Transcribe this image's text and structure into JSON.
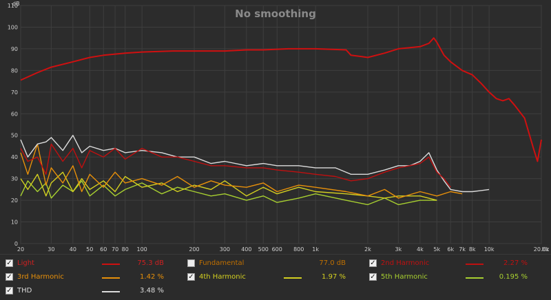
{
  "colors": {
    "background": "#2b2b2b",
    "plot_bg": "#2c2c2c",
    "grid": "#3e3e3e",
    "axis_text": "#d0d0d0",
    "title": "#8a8a8a"
  },
  "chart_data": {
    "type": "line",
    "title": "No smoothing",
    "ylabel": "dB",
    "xunit": "Hz",
    "xscale": "log",
    "xlim": [
      20,
      20000
    ],
    "ylim": [
      0,
      110
    ],
    "grid": true,
    "yticks": [
      0,
      10,
      20,
      30,
      40,
      50,
      60,
      70,
      80,
      90,
      100,
      110
    ],
    "ytick_labels": [
      "0",
      "10",
      "20",
      "30",
      "40",
      "50",
      "60",
      "70",
      "80",
      "90",
      "100",
      "110"
    ],
    "xticks": [
      20,
      30,
      40,
      50,
      60,
      70,
      80,
      100,
      200,
      300,
      400,
      500,
      600,
      800,
      1000,
      2000,
      3000,
      4000,
      5000,
      6000,
      7000,
      8000,
      10000,
      20000
    ],
    "xtick_labels": [
      "20",
      "30",
      "40",
      "50",
      "60",
      "70",
      "80",
      "100",
      "200",
      "300",
      "400",
      "500",
      "600",
      "800",
      "1k",
      "2k",
      "3k",
      "4k",
      "5k",
      "6k",
      "7k",
      "8k",
      "10k",
      "20.0k"
    ],
    "series": [
      {
        "name": "Light",
        "color": "#d01010",
        "x": [
          20,
          25,
          30,
          40,
          50,
          60,
          80,
          100,
          150,
          200,
          300,
          400,
          500,
          700,
          1000,
          1500,
          1600,
          1800,
          2000,
          2500,
          3000,
          3500,
          4000,
          4500,
          4800,
          5000,
          5500,
          6000,
          7000,
          8000,
          9000,
          10000,
          11000,
          12000,
          13000,
          14000,
          16000,
          18000,
          19000,
          20000
        ],
        "y": [
          75.5,
          79,
          81.5,
          84,
          86,
          87,
          88,
          88.5,
          89,
          89,
          89,
          89.5,
          89.5,
          90,
          90,
          89.5,
          87,
          86.5,
          86,
          88,
          90,
          90.5,
          91,
          92.5,
          95,
          93,
          87,
          84,
          80,
          78,
          74,
          70,
          67,
          66,
          67,
          64,
          58,
          44,
          38,
          48
        ]
      },
      {
        "name": "Fundamental",
        "color": "#c07000",
        "visible": false,
        "x": [],
        "y": []
      },
      {
        "name": "2nd Harmonic",
        "color": "#c01010",
        "x": [
          20,
          22,
          25,
          28,
          30,
          35,
          40,
          45,
          50,
          60,
          70,
          80,
          100,
          130,
          160,
          200,
          250,
          300,
          400,
          500,
          600,
          800,
          1000,
          1300,
          1600,
          2000,
          2500,
          3000,
          3500,
          4000,
          4500,
          5000,
          5500,
          6000
        ],
        "y": [
          44,
          38,
          40,
          32,
          46,
          38,
          44,
          35,
          43,
          40,
          44,
          39,
          44,
          40,
          40,
          38,
          36,
          36,
          35,
          35,
          34,
          33,
          32,
          31,
          29,
          30,
          33,
          35,
          36,
          37,
          40,
          33,
          30,
          26
        ]
      },
      {
        "name": "3rd Harmonic",
        "color": "#e8900a",
        "x": [
          20,
          22,
          25,
          28,
          30,
          35,
          40,
          45,
          50,
          60,
          70,
          80,
          100,
          130,
          160,
          200,
          250,
          300,
          400,
          500,
          600,
          800,
          1000,
          1500,
          2000,
          2500,
          3000,
          4000,
          5000,
          6000,
          7000
        ],
        "y": [
          42,
          32,
          46,
          27,
          35,
          28,
          36,
          24,
          32,
          26,
          33,
          28,
          30,
          27,
          31,
          26,
          29,
          27,
          26,
          28,
          24,
          27,
          26,
          24,
          22,
          25,
          21,
          24,
          22,
          24,
          23
        ]
      },
      {
        "name": "4th Harmonic",
        "color": "#d4d020",
        "x": [
          20,
          22,
          25,
          28,
          30,
          35,
          40,
          45,
          50,
          60,
          70,
          80,
          100,
          130,
          160,
          200,
          250,
          300,
          400,
          500,
          600,
          800,
          1000,
          1500,
          2000,
          2500,
          3000,
          4000,
          5000
        ],
        "y": [
          30,
          25,
          32,
          22,
          28,
          33,
          24,
          30,
          25,
          29,
          24,
          31,
          26,
          28,
          24,
          27,
          25,
          29,
          22,
          26,
          23,
          26,
          24,
          23,
          22,
          21,
          22,
          22,
          20
        ]
      },
      {
        "name": "5th Harmonic",
        "color": "#a8d030",
        "x": [
          20,
          22,
          25,
          28,
          30,
          35,
          40,
          45,
          50,
          60,
          70,
          80,
          100,
          130,
          160,
          200,
          250,
          300,
          400,
          500,
          600,
          800,
          1000,
          1500,
          2000,
          2500,
          3000,
          4000,
          5000
        ],
        "y": [
          22,
          29,
          24,
          28,
          21,
          27,
          24,
          29,
          22,
          27,
          22,
          25,
          28,
          23,
          26,
          24,
          22,
          23,
          20,
          22,
          19,
          21,
          23,
          20,
          18,
          21,
          18,
          20,
          20
        ]
      },
      {
        "name": "THD",
        "color": "#dcdcdc",
        "x": [
          20,
          22,
          25,
          28,
          30,
          35,
          40,
          45,
          50,
          60,
          70,
          80,
          100,
          130,
          160,
          200,
          250,
          300,
          400,
          500,
          600,
          800,
          1000,
          1300,
          1600,
          2000,
          2500,
          3000,
          3500,
          4000,
          4500,
          5000,
          5500,
          6000,
          7000,
          8000,
          9000,
          10000
        ],
        "y": [
          48,
          40,
          46,
          47,
          49,
          43,
          50,
          42,
          45,
          43,
          44,
          42,
          43,
          42,
          40,
          40,
          37,
          38,
          36,
          37,
          36,
          36,
          35,
          35,
          32,
          32,
          34,
          36,
          36,
          38,
          42,
          34,
          29,
          25,
          24,
          24,
          24.5,
          25
        ]
      }
    ]
  },
  "legend": [
    {
      "label": "Light",
      "value": "75.3 dB",
      "checked": true,
      "name_color": "#d02020",
      "value_color": "#d02020",
      "line_color": "#d01010"
    },
    {
      "label": "Fundamental",
      "value": "77.0 dB",
      "checked": false,
      "name_color": "#c07000",
      "value_color": "#c07000",
      "line_color": ""
    },
    {
      "label": "2nd Harmonic",
      "value": "2.27 %",
      "checked": true,
      "name_color": "#c01010",
      "value_color": "#c01010",
      "line_color": "#c01010"
    },
    {
      "label": "3rd Harmonic",
      "value": "1.42 %",
      "checked": true,
      "name_color": "#e8900a",
      "value_color": "#e8900a",
      "line_color": "#e8900a"
    },
    {
      "label": "4th Harmonic",
      "value": "1.97 %",
      "checked": true,
      "name_color": "#d4d020",
      "value_color": "#d4d020",
      "line_color": "#d4d020"
    },
    {
      "label": "5th Harmonic",
      "value": "0.195 %",
      "checked": true,
      "name_color": "#a8d030",
      "value_color": "#a8d030",
      "line_color": "#a8d030"
    },
    {
      "label": "THD",
      "value": "3.48 %",
      "checked": true,
      "name_color": "#dcdcdc",
      "value_color": "#dcdcdc",
      "line_color": "#dcdcdc"
    }
  ]
}
